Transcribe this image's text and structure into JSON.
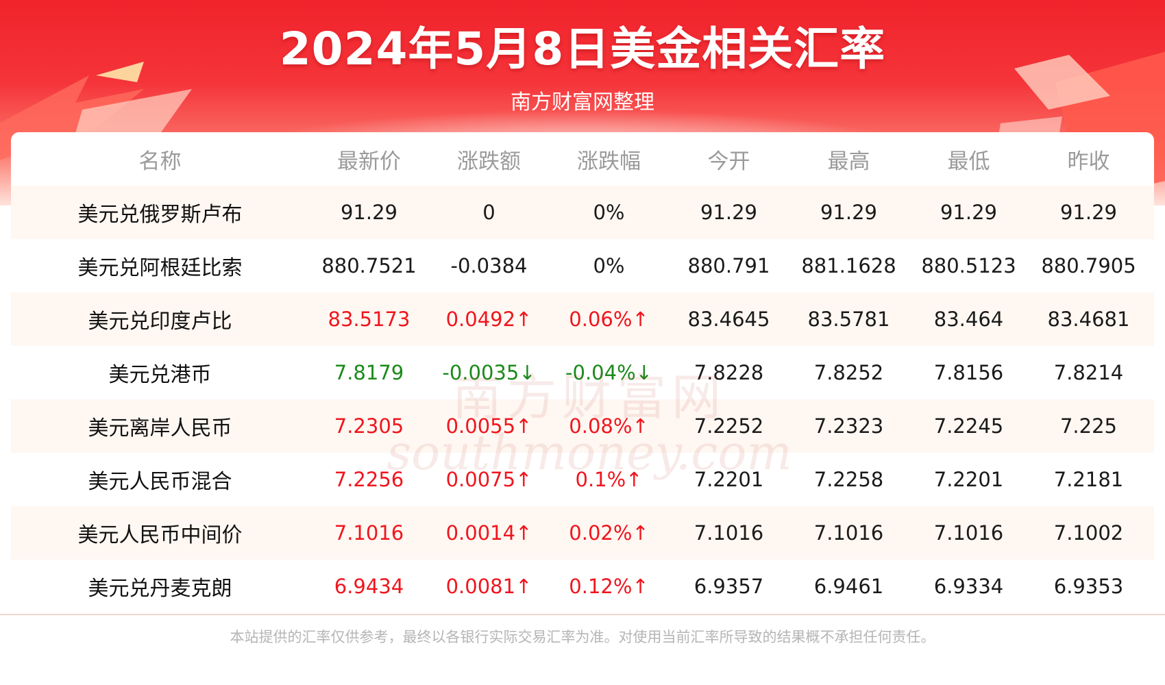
{
  "chart_data": {
    "type": "table",
    "title": "2024年5月8日美金相关汇率",
    "subtitle": "南方财富网整理",
    "columns": [
      "名称",
      "最新价",
      "涨跌额",
      "涨跌幅",
      "今开",
      "最高",
      "最低",
      "昨收"
    ],
    "rows": [
      {
        "name": "美元兑俄罗斯卢布",
        "latest": "91.29",
        "change": "0",
        "change_pct": "0%",
        "open": "91.29",
        "high": "91.29",
        "low": "91.29",
        "prev_close": "91.29",
        "trend": "flat"
      },
      {
        "name": "美元兑阿根廷比索",
        "latest": "880.7521",
        "change": "-0.0384",
        "change_pct": "0%",
        "open": "880.791",
        "high": "881.1628",
        "low": "880.5123",
        "prev_close": "880.7905",
        "trend": "flat"
      },
      {
        "name": "美元兑印度卢比",
        "latest": "83.5173",
        "change": "0.0492↑",
        "change_pct": "0.06%↑",
        "open": "83.4645",
        "high": "83.5781",
        "low": "83.464",
        "prev_close": "83.4681",
        "trend": "up"
      },
      {
        "name": "美元兑港币",
        "latest": "7.8179",
        "change": "-0.0035↓",
        "change_pct": "-0.04%↓",
        "open": "7.8228",
        "high": "7.8252",
        "low": "7.8156",
        "prev_close": "7.8214",
        "trend": "down"
      },
      {
        "name": "美元离岸人民币",
        "latest": "7.2305",
        "change": "0.0055↑",
        "change_pct": "0.08%↑",
        "open": "7.2252",
        "high": "7.2323",
        "low": "7.2245",
        "prev_close": "7.225",
        "trend": "up"
      },
      {
        "name": "美元人民币混合",
        "latest": "7.2256",
        "change": "0.0075↑",
        "change_pct": "0.1%↑",
        "open": "7.2201",
        "high": "7.2258",
        "low": "7.2201",
        "prev_close": "7.2181",
        "trend": "up"
      },
      {
        "name": "美元人民币中间价",
        "latest": "7.1016",
        "change": "0.0014↑",
        "change_pct": "0.02%↑",
        "open": "7.1016",
        "high": "7.1016",
        "low": "7.1016",
        "prev_close": "7.1002",
        "trend": "up"
      },
      {
        "name": "美元兑丹麦克朗",
        "latest": "6.9434",
        "change": "0.0081↑",
        "change_pct": "0.12%↑",
        "open": "6.9357",
        "high": "6.9461",
        "low": "6.9334",
        "prev_close": "6.9353",
        "trend": "up"
      }
    ],
    "colors": {
      "up": "#f0151d",
      "down": "#1a8a1a",
      "neutral": "#1a1a1a"
    }
  },
  "watermark": {
    "cn": "南方财富网",
    "en": "southmoney.com"
  },
  "footer": "本站提供的汇率仅供参考，最终以各银行实际交易汇率为准。对使用当前汇率所导致的结果概不承担任何责任。"
}
